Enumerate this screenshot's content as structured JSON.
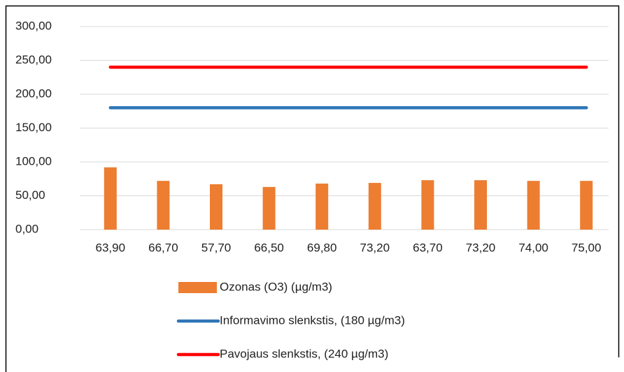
{
  "chart_data": {
    "type": "bar",
    "categories": [
      "63,90",
      "66,70",
      "57,70",
      "66,50",
      "69,80",
      "73,20",
      "63,70",
      "73,20",
      "74,00",
      "75,00"
    ],
    "series": [
      {
        "name": "Ozonas (O3) (µg/m3)",
        "type": "bar",
        "color": "#ed7d31",
        "values": [
          92,
          72,
          67,
          63,
          68,
          69,
          73,
          73,
          72,
          72
        ]
      },
      {
        "name": "Informavimo slenkstis, (180 µg/m3)",
        "type": "line",
        "color": "#2e75b6",
        "values": [
          180,
          180,
          180,
          180,
          180,
          180,
          180,
          180,
          180,
          180
        ]
      },
      {
        "name": "Pavojaus slenkstis, (240 µg/m3)",
        "type": "line",
        "color": "#ff0000",
        "values": [
          240,
          240,
          240,
          240,
          240,
          240,
          240,
          240,
          240,
          240
        ]
      }
    ],
    "ylim": [
      0,
      300
    ],
    "yticks": [
      {
        "value": 0,
        "label": "0,00"
      },
      {
        "value": 50,
        "label": "50,00"
      },
      {
        "value": 100,
        "label": "100,00"
      },
      {
        "value": 150,
        "label": "150,00"
      },
      {
        "value": 200,
        "label": "200,00"
      },
      {
        "value": 250,
        "label": "250,00"
      },
      {
        "value": 300,
        "label": "300,00"
      }
    ],
    "grid": true,
    "legend": "bottom"
  }
}
